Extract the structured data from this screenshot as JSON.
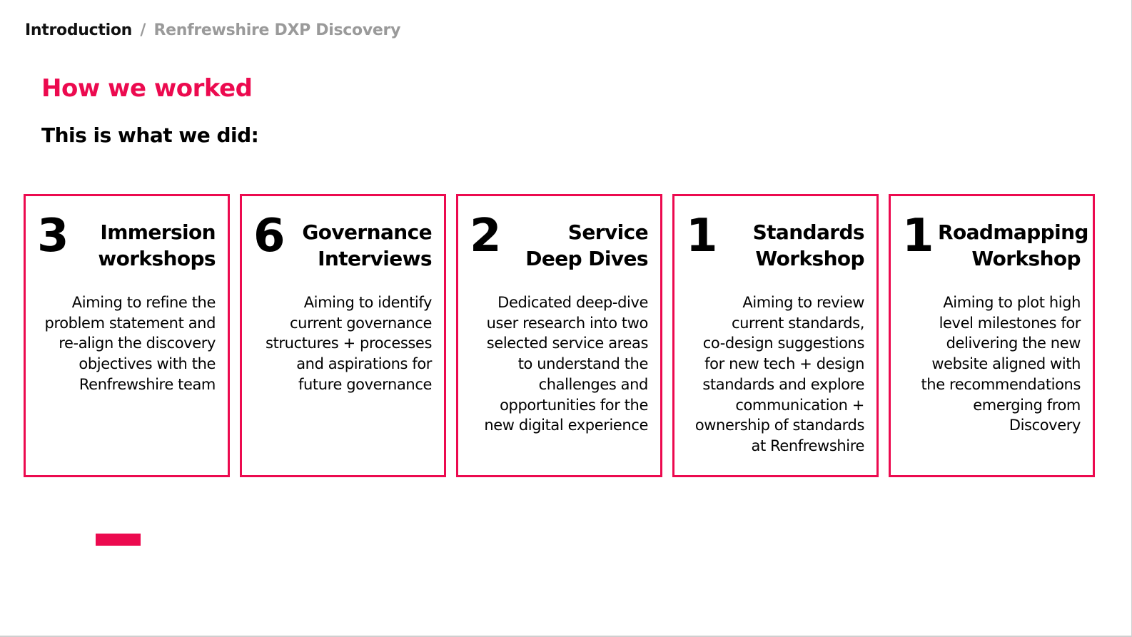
{
  "breadcrumb": {
    "root": "Introduction",
    "separator": "/",
    "current": "Renfrewshire DXP Discovery"
  },
  "page": {
    "title": "How we worked",
    "subtitle": "This is what we did:"
  },
  "cards": [
    {
      "count": "3",
      "title_lines": [
        "Immersion",
        "workshops"
      ],
      "description_lines": [
        "Aiming to refine the",
        "problem statement and",
        "re-align the discovery",
        "objectives with the",
        "Renfrewshire team"
      ]
    },
    {
      "count": "6",
      "title_lines": [
        "Governance",
        "Interviews"
      ],
      "description_lines": [
        "Aiming to identify",
        "current governance",
        "structures + processes",
        "and aspirations for",
        "future governance"
      ]
    },
    {
      "count": "2",
      "title_lines": [
        "Service",
        "Deep Dives"
      ],
      "description_lines": [
        "Dedicated deep-dive",
        "user research into two",
        "selected service areas",
        "to understand the",
        "challenges and",
        "opportunities for the",
        "new digital experience"
      ]
    },
    {
      "count": "1",
      "title_lines": [
        "Standards",
        "Workshop"
      ],
      "description_lines": [
        "Aiming to review",
        "current standards,",
        "co-design suggestions",
        "for new tech + design",
        "standards and explore",
        "communication +",
        "ownership of standards",
        "at Renfrewshire"
      ]
    },
    {
      "count": "1",
      "title_lines": [
        "Roadmapping",
        "Workshop"
      ],
      "description_lines": [
        "Aiming to plot high",
        "level milestones for",
        "delivering the new",
        "website aligned with",
        "the recommendations",
        "emerging from",
        "Discovery"
      ]
    }
  ],
  "colors": {
    "accent": "#ec0a4f",
    "muted_text": "#9a9a9a",
    "text": "#000000"
  }
}
